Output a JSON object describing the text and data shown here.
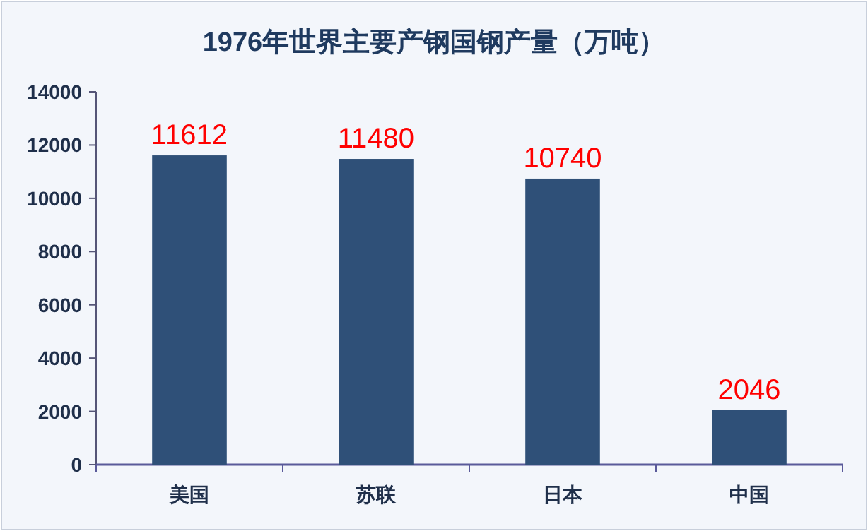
{
  "chart_data": {
    "type": "bar",
    "title": "1976年世界主要产钢国钢产量（万吨）",
    "categories": [
      "美国",
      "苏联",
      "日本",
      "中国"
    ],
    "series": [
      {
        "color": "#2f5078",
        "values": [
          11612,
          11480,
          10740,
          2046
        ]
      }
    ],
    "ylim": [
      0,
      14000
    ],
    "yticks": [
      0,
      2000,
      4000,
      6000,
      8000,
      10000,
      12000,
      14000
    ],
    "data_labels": true,
    "grid": false
  }
}
